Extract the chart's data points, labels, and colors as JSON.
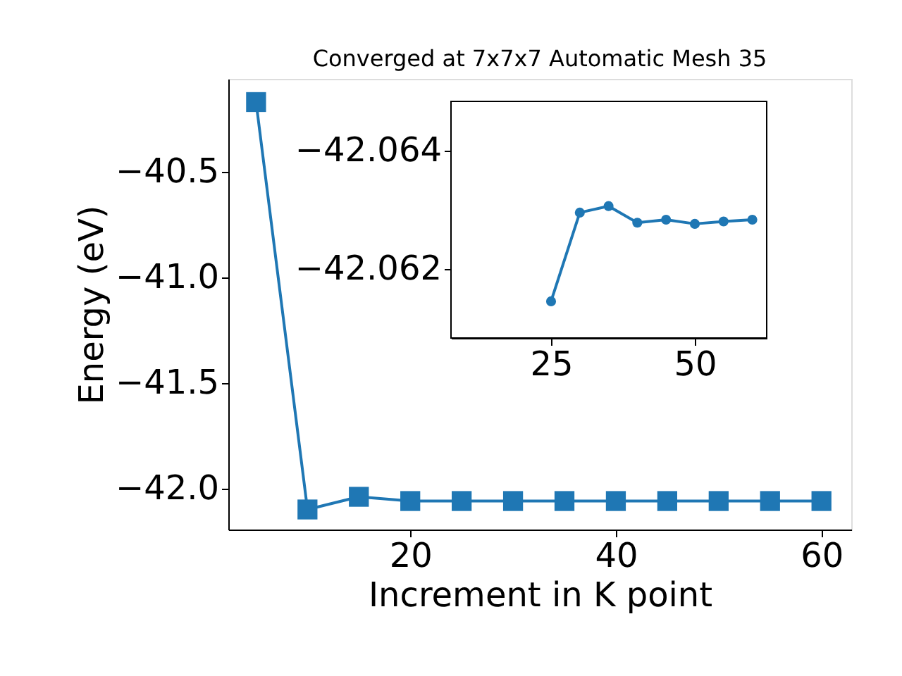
{
  "chart_data": [
    {
      "type": "line",
      "title": "Converged at 7x7x7 Automatic Mesh 35",
      "xlabel": "Increment in K point",
      "ylabel": "Energy (eV)",
      "x": [
        5,
        10,
        15,
        20,
        25,
        30,
        35,
        40,
        45,
        50,
        55,
        60
      ],
      "series": [
        {
          "color": "#1f77b4",
          "values": [
            -40.17,
            -42.1,
            -42.04,
            -42.06,
            -42.06,
            -42.06,
            -42.06,
            -42.06,
            -42.06,
            -42.06,
            -42.06,
            -42.06
          ]
        }
      ],
      "xlim": [
        2.3,
        62.9
      ],
      "ylim": [
        -42.195,
        -40.06
      ],
      "xticks": [
        20,
        40,
        60
      ],
      "yticks": [
        {
          "value": -42.0,
          "label": "−42.0"
        },
        {
          "value": -41.5,
          "label": "−41.5"
        },
        {
          "value": -41.0,
          "label": "−41.0"
        },
        {
          "value": -40.5,
          "label": "−40.5"
        }
      ],
      "marker": "square",
      "line_style": "solid",
      "grid": false
    },
    {
      "type": "line",
      "x": [
        25,
        30,
        35,
        40,
        45,
        50,
        55,
        60
      ],
      "series": [
        {
          "color": "#1f77b4",
          "values": [
            -42.06145,
            -42.06295,
            -42.06306,
            -42.06278,
            -42.06283,
            -42.06276,
            -42.0628,
            -42.06283
          ]
        }
      ],
      "xlim": [
        7.6,
        62.5
      ],
      "ylim": [
        -42.06083,
        -42.06483
      ],
      "xticks": [
        25,
        50
      ],
      "yticks": [
        {
          "value": -42.064,
          "label": "−42.064"
        },
        {
          "value": -42.062,
          "label": "−42.062"
        }
      ],
      "marker": "circle",
      "line_style": "solid",
      "grid": false
    }
  ]
}
